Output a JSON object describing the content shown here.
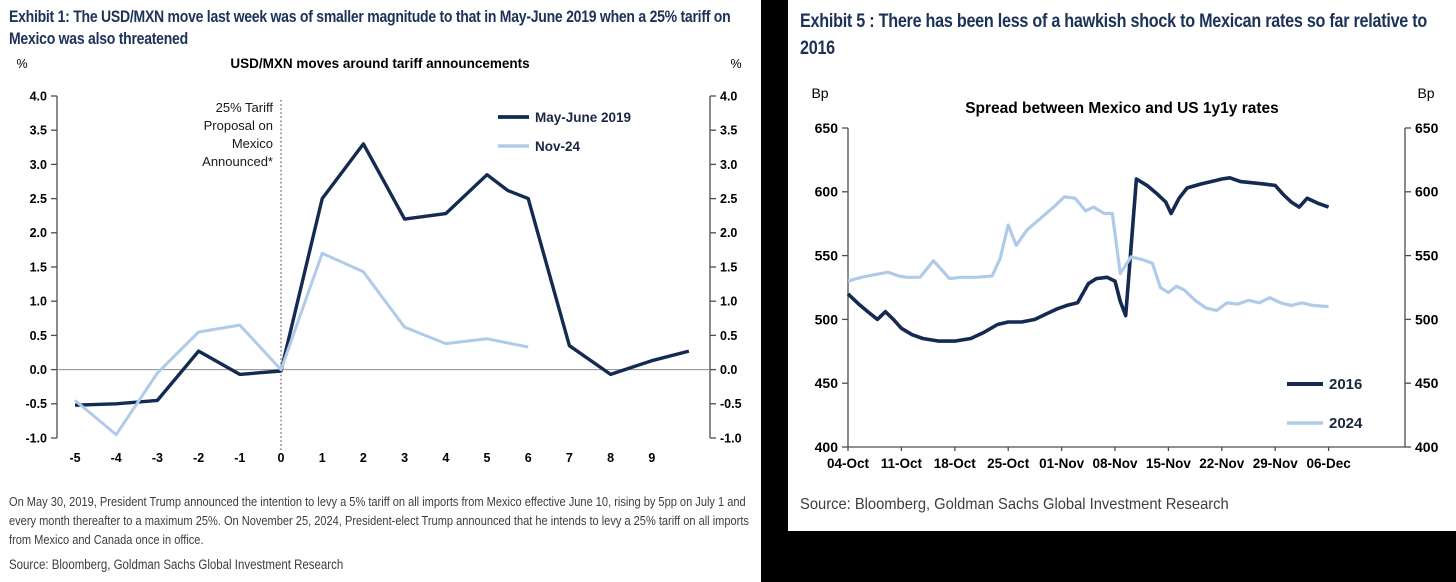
{
  "left_panel": {
    "exhibit_title": "Exhibit 1: The USD/MXN move last week was of smaller magnitude to that in May-June 2019 when a 25% tariff on Mexico was also threatened",
    "footnote": "On May 30, 2019, President Trump announced the intention to levy a 5% tariff on all imports from Mexico effective June 10, rising by 5pp on July 1 and every month thereafter to a maximum 25%. On November 25, 2024, President-elect Trump announced that he intends to levy a 25% tariff on all imports from Mexico and Canada once in office.",
    "source": "Source: Bloomberg, Goldman Sachs Global Investment Research"
  },
  "right_panel": {
    "exhibit_title": "Exhibit 5 : There has been less of a hawkish shock to Mexican rates so far relative to 2016",
    "source": "Source: Bloomberg, Goldman Sachs Global Investment Research"
  },
  "colors": {
    "navy_line": "#152a52",
    "light_blue_line": "#b0cbe9",
    "title_navy": "#1c3257",
    "axis_gray": "#4d4d4d"
  },
  "chart_data": [
    {
      "type": "line",
      "title": "USD/MXN moves around tariff announcements",
      "ylabel_left": "%",
      "ylabel_right": "%",
      "ylim": [
        -1.0,
        4.0
      ],
      "yticks": [
        "4.0",
        "3.5",
        "3.0",
        "2.5",
        "2.0",
        "1.5",
        "1.0",
        "0.5",
        "0.0",
        "-0.5",
        "-1.0"
      ],
      "xticks": [
        -5,
        -4,
        -3,
        -2,
        -1,
        0,
        1,
        2,
        3,
        4,
        5,
        6,
        7,
        8,
        9
      ],
      "zero_gridline": true,
      "legend_position": "top-right-inside",
      "annotation": {
        "text": "25% Tariff Proposal on Mexico Announced*",
        "lines": [
          "25% Tariff",
          "Proposal on",
          "Mexico",
          "Announced*"
        ],
        "x": 0
      },
      "series": [
        {
          "name": "May-June 2019",
          "color": "#152a52",
          "x": [
            -5,
            -4,
            -3,
            -2,
            -1,
            0,
            1,
            2,
            3,
            4,
            5,
            5.5,
            6,
            7,
            8,
            8.5,
            9,
            9.9
          ],
          "y": [
            -0.52,
            -0.5,
            -0.45,
            0.27,
            -0.07,
            -0.02,
            2.5,
            3.3,
            2.2,
            2.28,
            2.85,
            2.62,
            2.5,
            0.35,
            -0.07,
            0.03,
            0.13,
            0.27
          ]
        },
        {
          "name": "Nov-24",
          "color": "#b0cbe9",
          "x": [
            -5,
            -4,
            -3,
            -2,
            -1,
            0,
            1,
            2,
            3,
            3.5,
            4,
            5,
            6
          ],
          "y": [
            -0.45,
            -0.95,
            -0.05,
            0.55,
            0.65,
            0,
            1.7,
            1.43,
            0.62,
            0.5,
            0.38,
            0.45,
            0.33
          ]
        }
      ]
    },
    {
      "type": "line",
      "title": "Spread between Mexico and US 1y1y rates",
      "ylabel_left": "Bp",
      "ylabel_right": "Bp",
      "ylim": [
        400,
        650
      ],
      "yticks": [
        "650",
        "600",
        "550",
        "500",
        "450",
        "400"
      ],
      "categories": [
        "04-Oct",
        "11-Oct",
        "18-Oct",
        "25-Oct",
        "01-Nov",
        "08-Nov",
        "15-Nov",
        "22-Nov",
        "29-Nov",
        "06-Dec"
      ],
      "x_unit": "weeks from 04-Oct",
      "legend_position": "right-inside",
      "series": [
        {
          "name": "2016",
          "color": "#152a52",
          "x": [
            0,
            0.2,
            0.4,
            0.55,
            0.7,
            0.85,
            1,
            1.2,
            1.4,
            1.7,
            2,
            2.3,
            2.55,
            2.8,
            3,
            3.25,
            3.5,
            3.7,
            3.9,
            4.1,
            4.3,
            4.5,
            4.65,
            4.85,
            5,
            5.1,
            5.2,
            5.4,
            5.6,
            5.8,
            5.95,
            6.05,
            6.2,
            6.35,
            6.6,
            6.8,
            7,
            7.15,
            7.35,
            7.6,
            7.8,
            8,
            8.15,
            8.3,
            8.45,
            8.6,
            8.8,
            9
          ],
          "y": [
            520,
            512,
            505,
            500,
            506,
            500,
            493,
            488,
            485,
            483,
            483,
            485,
            490,
            496,
            498,
            498,
            500,
            504,
            508,
            511,
            513,
            528,
            532,
            533,
            530,
            514,
            503,
            610,
            605,
            598,
            592,
            583,
            595,
            603,
            606,
            608,
            610,
            611,
            608,
            607,
            606,
            605,
            598,
            592,
            588,
            595,
            591,
            588
          ]
        },
        {
          "name": "2024",
          "color": "#b0cbe9",
          "x": [
            0,
            0.25,
            0.5,
            0.75,
            0.95,
            1.1,
            1.35,
            1.6,
            1.75,
            1.9,
            2.1,
            2.4,
            2.7,
            2.85,
            3,
            3.15,
            3.35,
            3.6,
            3.85,
            4.05,
            4.25,
            4.45,
            4.6,
            4.8,
            4.95,
            5.1,
            5.3,
            5.5,
            5.7,
            5.85,
            6,
            6.15,
            6.3,
            6.5,
            6.7,
            6.9,
            7.1,
            7.3,
            7.5,
            7.7,
            7.9,
            8.1,
            8.3,
            8.5,
            8.7,
            9
          ],
          "y": [
            530,
            533,
            535,
            537,
            534,
            533,
            533,
            546,
            539,
            532,
            533,
            533,
            534,
            548,
            574,
            558,
            570,
            579,
            588,
            596,
            595,
            585,
            588,
            583,
            583,
            536,
            549,
            547,
            544,
            525,
            521,
            526,
            523,
            515,
            509,
            507,
            513,
            512,
            515,
            513,
            517,
            513,
            511,
            513,
            511,
            510
          ]
        }
      ]
    }
  ]
}
